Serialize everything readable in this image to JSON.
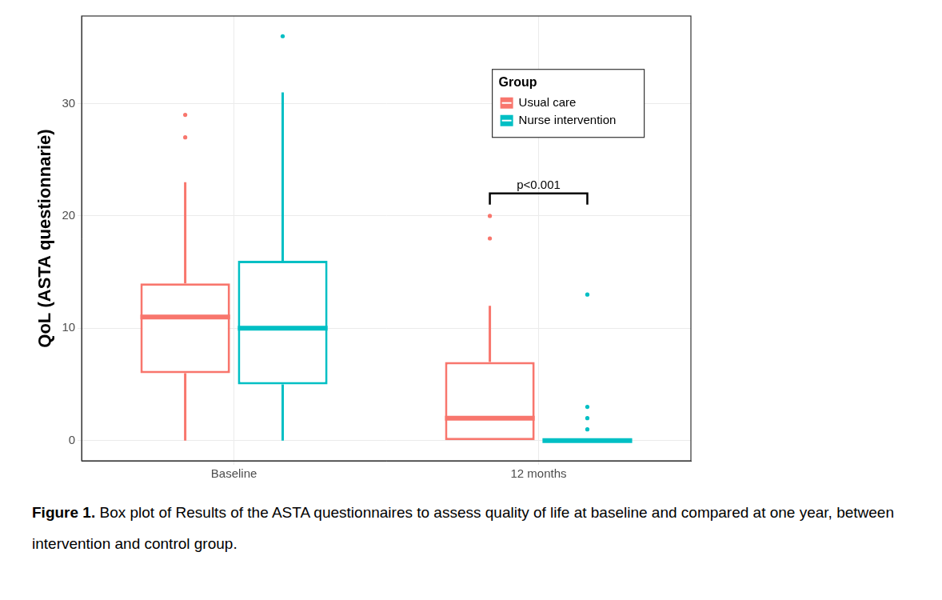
{
  "chart_data": {
    "type": "box",
    "y_label": "QoL (ASTA questionnarie)",
    "categories": [
      "Baseline",
      "12 months"
    ],
    "series": [
      {
        "name": "Usual care",
        "color": "#F8766D",
        "boxes": [
          {
            "min": 0,
            "q1": 6,
            "median": 11,
            "q3": 14,
            "max": 23,
            "outliers": [
              27,
              29
            ]
          },
          {
            "min": 0,
            "q1": 0,
            "median": 2,
            "q3": 7,
            "max": 12,
            "outliers": [
              18,
              20
            ]
          }
        ]
      },
      {
        "name": "Nurse intervention",
        "color": "#00BFC4",
        "boxes": [
          {
            "min": 0,
            "q1": 5,
            "median": 10,
            "q3": 16,
            "max": 31,
            "outliers": [
              36
            ]
          },
          {
            "min": 0,
            "q1": 0,
            "median": 0,
            "q3": 0,
            "max": 0,
            "outliers": [
              1,
              2,
              3,
              13
            ]
          }
        ]
      }
    ],
    "legend_title": "Group",
    "legend": "top-right",
    "ylim": [
      -1.8,
      37.8
    ],
    "yticks": [
      0,
      10,
      20,
      30
    ],
    "grid": true,
    "annotations": [
      {
        "text": "p<0.001",
        "category": "12 months",
        "y": 22
      }
    ]
  },
  "caption": {
    "label": "Figure 1.",
    "text": "Box plot of Results of the ASTA questionnaires to assess quality of life at baseline and compared at one year, between intervention and control group."
  }
}
